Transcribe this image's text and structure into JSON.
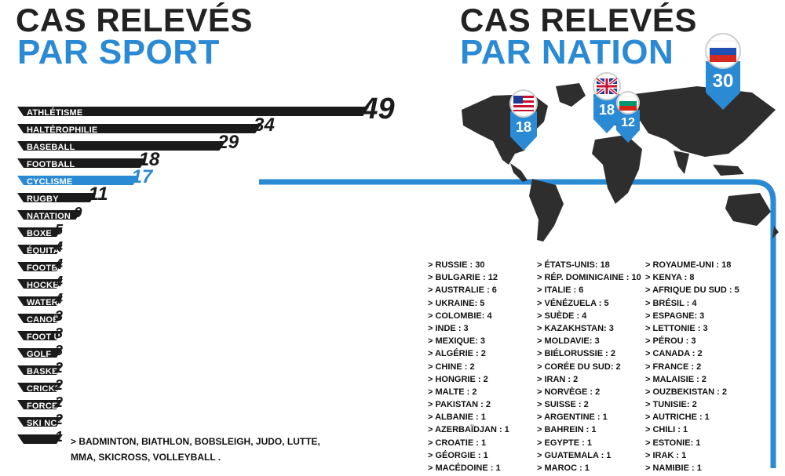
{
  "left_title": {
    "line1": "CAS RELEVÉS",
    "line2": "PAR SPORT"
  },
  "right_title": {
    "line1": "CAS RELEVÉS",
    "line2": "PAR NATION"
  },
  "colors": {
    "dark": "#1a1a1a",
    "accent": "#2a8ad4",
    "map": "#2e2e2e"
  },
  "chart_data": {
    "type": "bar",
    "orientation": "horizontal",
    "title": "",
    "categories": [
      "ATHLÉTISME",
      "HALTÉROPHILIE",
      "BASEBALL",
      "FOOTBALL",
      "CYCLISME",
      "RUGBY",
      "NATATION",
      "BOXE",
      "ÉQUITATION",
      "FOOTBALL AUS.",
      "HOCKEY S/ GLACE",
      "WATER POLO",
      "CANOË-KAYAK",
      "FOOT US",
      "GOLF",
      "BASKET",
      "CRICKET",
      "FORCE ATHLÉ.",
      "SKI NORDIQUE",
      ""
    ],
    "values": [
      49,
      34,
      29,
      18,
      17,
      11,
      9,
      5,
      4,
      4,
      4,
      4,
      3,
      3,
      3,
      2,
      2,
      2,
      2,
      1
    ],
    "highlight_index": 4,
    "other_label_1": "> BADMINTON, BIATHLON, BOBSLEIGH, JUDO, LUTTE,",
    "other_label_2": "MMA, SKICROSS, VOLLEYBALL ."
  },
  "map_pins": [
    {
      "country": "usa-flag-icon",
      "value": "18"
    },
    {
      "country": "uk-flag-icon",
      "value": "18"
    },
    {
      "country": "bulgaria-flag-icon",
      "value": "12"
    },
    {
      "country": "russia-flag-icon",
      "value": "30"
    }
  ],
  "nations": {
    "col1": [
      "> RUSSIE : 30",
      "> BULGARIE : 12",
      "> AUSTRALIE : 6",
      "> UKRAINE: 5",
      "> COLOMBIE: 4",
      "> INDE : 3",
      "> MEXIQUE: 3",
      "> ALGÉRIE : 2",
      "> CHINE : 2",
      "> HONGRIE : 2",
      "> MALTE : 2",
      "> PAKISTAN : 2",
      "> ALBANIE : 1",
      "> AZERBAÏDJAN : 1",
      "> CROATIE : 1",
      "> GÉORGIE : 1",
      "> MACÉDOINE : 1"
    ],
    "col2": [
      "> ÉTATS-UNIS: 18",
      "> RÉP. DOMINICAINE : 10",
      "> ITALIE : 6",
      "> VÉNÉZUELA : 5",
      "> SUÈDE : 4",
      "> KAZAKHSTAN: 3",
      "> MOLDAVIE: 3",
      "> BIÉLORUSSIE : 2",
      "> CORÉE DU SUD: 2",
      "> IRAN : 2",
      "> NORVÈGE : 2",
      "> SUISSE : 2",
      "> ARGENTINE : 1",
      "> BAHREIN : 1",
      "> EGYPTE : 1",
      "> GUATEMALA : 1",
      "> MAROC : 1"
    ],
    "col3": [
      "> ROYAUME-UNI : 18",
      "> KENYA : 8",
      "> AFRIQUE DU SUD : 5",
      "> BRÉSIL : 4",
      "> ESPAGNE: 3",
      "> LETTONIE : 3",
      "> PÉROU : 3",
      "> CANADA : 2",
      "> FRANCE : 2",
      "> MALAISIE : 2",
      "> OUZBEKISTAN : 2",
      "> TUNISIE: 2",
      "> AUTRICHE : 1",
      "> CHILI : 1",
      "> ESTONIE: 1",
      "> IRAK : 1",
      "> NAMIBIE : 1"
    ]
  }
}
